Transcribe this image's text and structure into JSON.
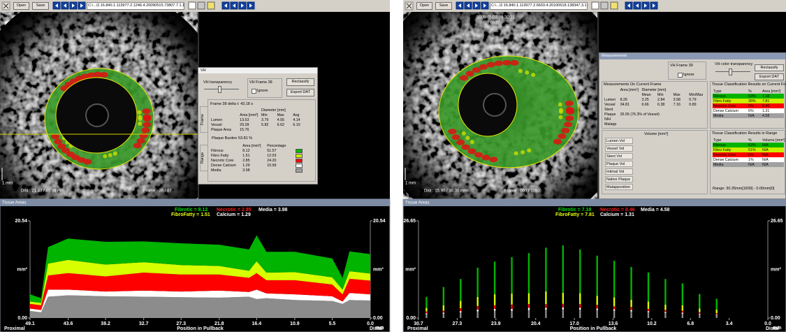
{
  "left": {
    "toolbar": {
      "open": "Open",
      "save": "Save",
      "path": "C:\\...\\2.16.840.1.113977.2.1246.4.20090515.73807.7.1.1.50.IQ"
    },
    "image": {
      "scale": "1 mm",
      "dist": "Dist : 21.43 / 49.06 mm",
      "frame": "Frame : 36 / 87"
    },
    "dialog": {
      "title": "VH",
      "transparency": "VH transparency",
      "frame_box": "VH Frame 39",
      "ignore": "Ignore",
      "reclassify": "Reclassify",
      "export": "Export DAT",
      "tabs": [
        "Frame",
        "Range"
      ],
      "frame_info": "Frame 38 delta t: 43.18 s",
      "diameter": "Diameter [mm]",
      "frame_header": [
        "Area [mm²]",
        "Min",
        "Max",
        "Avg"
      ],
      "frame_rows": [
        [
          "Lumen",
          "13.53",
          "3.79",
          "4.55",
          "4.14"
        ],
        [
          "Vessel",
          "29.28",
          "5.82",
          "6.62",
          "6.10"
        ],
        [
          "Plaque Area",
          "15.76"
        ]
      ],
      "plaque_burden": [
        "Plaque Burden",
        "53.81 %"
      ],
      "tissue_header": [
        "Area [mm²]",
        "Percentage"
      ],
      "tissue_rows": [
        [
          "Fibrous",
          "8.12",
          "51.57"
        ],
        [
          "Fibro Fatty",
          "1.51",
          "12.03"
        ],
        [
          "Necrotic Core",
          "2.85",
          "24.20"
        ],
        [
          "Dense Calcium",
          "1.29",
          "10.99"
        ],
        [
          "Media",
          "3.98"
        ]
      ],
      "tissue_colors": [
        "#00b400",
        "#c8f000",
        "#ff0000",
        "#ffffff",
        "#a0a0a0"
      ]
    },
    "chart": {
      "type": "area",
      "title": "Tissue Areas",
      "legend": [
        {
          "label": "Fibrotic = 8.12",
          "color": "#00e000"
        },
        {
          "label": "Necrotic = 2.85",
          "color": "#ff2020"
        },
        {
          "label": "Media = 3.98",
          "color": "#ffffff"
        },
        {
          "label": "FibroFatty = 1.51",
          "color": "#e8ff00"
        },
        {
          "label": "Calcium = 1.29",
          "color": "#ffffff"
        }
      ],
      "ylabel": "mm²",
      "xlabel": "Position in Pullback",
      "start_label": "Proximal",
      "end_label": "Distal",
      "xunit": "mm",
      "xlim": [
        49.1,
        0
      ],
      "xticks": [
        49.1,
        43.6,
        38.2,
        32.7,
        27.3,
        21.8,
        16.4,
        10.9,
        5.5,
        {
          "value": 0,
          "label": "0.0"
        }
      ],
      "ylim": [
        0,
        20.54
      ],
      "yticks": [
        {
          "value": 0,
          "label": "0.00"
        },
        20.54
      ],
      "x": [
        49.1,
        47.5,
        46.5,
        43.6,
        38.2,
        32.7,
        27.3,
        21.8,
        17.5,
        16.4,
        15.0,
        10.9,
        5.5,
        4.0,
        3.0,
        0
      ],
      "series": [
        {
          "color": "#8c8c8c",
          "values": [
            1.5,
            1.2,
            4.5,
            4.8,
            4.6,
            4.5,
            4.4,
            4.3,
            4.5,
            4.0,
            4.2,
            3.8,
            3.6,
            3.0,
            3.8,
            3.7
          ]
        },
        {
          "color": "#ffffff",
          "values": [
            0.5,
            0.5,
            1.5,
            1.2,
            1.0,
            1.3,
            1.2,
            1.5,
            1.0,
            2.0,
            1.0,
            1.2,
            1.0,
            0.5,
            1.5,
            1.3
          ]
        },
        {
          "color": "#ff0000",
          "values": [
            1.0,
            1.0,
            3.0,
            3.5,
            3.2,
            3.8,
            3.6,
            3.4,
            3.0,
            3.5,
            2.8,
            3.0,
            2.5,
            1.5,
            3.0,
            2.9
          ]
        },
        {
          "color": "#d8ff00",
          "values": [
            0.5,
            0.5,
            2.5,
            2.8,
            2.5,
            2.2,
            2.0,
            1.8,
            1.5,
            2.5,
            1.6,
            1.7,
            1.5,
            1.0,
            1.6,
            1.5
          ]
        },
        {
          "color": "#00b400",
          "values": [
            1.5,
            1.0,
            3.5,
            4.5,
            4.8,
            4.4,
            4.6,
            4.5,
            4.5,
            5.5,
            4.4,
            4.3,
            4.0,
            2.5,
            4.2,
            4.1
          ]
        }
      ]
    }
  },
  "right": {
    "toolbar": {
      "open": "Open",
      "save": "Save",
      "path": "C:\\...\\2.16.840.1.113977.2.6603.4.20100518.138347.3.1.1.50.IQ"
    },
    "image": {
      "scale": "1 mm",
      "dist": "Dist : 15.90 / 30.00 mm",
      "frame": "Frame : 000 / 1050",
      "timestamp": "2009/05/03 08:30:31",
      "frame_id": "0937"
    },
    "dialog": {
      "title": "Measurements",
      "frame_box": "VH Frame 39",
      "ignore": "Ignore",
      "transparency": "VH color transparency",
      "reclassify": "Reclassify",
      "export": "Export DAT",
      "frame_title": "Measurements On Current Frame",
      "frame_header": [
        "Area [mm²]",
        "Diameter [mm]"
      ],
      "frame_subheader": [
        "Mean",
        "Min",
        "Max",
        "Min/Max"
      ],
      "frame_rows": [
        [
          "Lumen",
          "8.26",
          "3.25",
          "2.84",
          "3.58",
          "0.79"
        ],
        [
          "Vessel",
          "34.81",
          "6.66",
          "6.38",
          "7.16",
          "0.89"
        ],
        [
          "Stent"
        ],
        [
          "Plaque",
          "26.55 (76.3% of Vessel)"
        ],
        [
          "NIH"
        ],
        [
          "Malapp"
        ]
      ],
      "tissue_title": "Tissue Classification Results on Current Frame",
      "tissue_header": [
        "Type",
        "%",
        "Area [mm²]"
      ],
      "tissue_rows": [
        [
          "Fibrous",
          "53%",
          "7.18"
        ],
        [
          "Fibro Fatty",
          "35%",
          "7.81"
        ],
        [
          "Necrotic Core",
          "6%",
          "0.46"
        ],
        [
          "Dense Calcium",
          "6%",
          "1.31"
        ],
        [
          "Media",
          "N/A",
          "4.58"
        ]
      ],
      "tissue_colors": [
        "#00b400",
        "#c8f000",
        "#ff0000",
        "#ffffff",
        "#a0a0a0"
      ],
      "volume_header": "Volume [mm³]",
      "volume_rows": [
        "Lumen Vol",
        "Vessel Vol",
        "Stent Vol",
        "Plaque Vol",
        "Intimal Vol",
        "Native Plaque",
        "Malapposition"
      ],
      "range_title": "Tissue Classification Results in Range",
      "range_header": [
        "Type",
        "%",
        "Volume [mm³]"
      ],
      "range_rows": [
        [
          "Fibrous",
          "62%",
          "N/A"
        ],
        [
          "Fibro Fatty",
          "51%",
          "N/A"
        ],
        [
          "Necrotic Core",
          "6%",
          "N/A"
        ],
        [
          "Dense Calcium",
          "1%",
          "N/A"
        ],
        [
          "Media",
          "N/A",
          "N/A"
        ]
      ],
      "range_text": "Range: 30.35mm[1839] - 0.00mm[0]"
    },
    "chart": {
      "type": "bar",
      "title": "Tissue Areas",
      "legend": [
        {
          "label": "Fibrotic = 7.18",
          "color": "#00e000"
        },
        {
          "label": "Necrotic = 0.46",
          "color": "#ff2020"
        },
        {
          "label": "Media = 4.58",
          "color": "#ffffff"
        },
        {
          "label": "FibroFatty = 7.81",
          "color": "#e8ff00"
        },
        {
          "label": "Calcium = 1.31",
          "color": "#ffffff"
        }
      ],
      "ylabel": "mm²",
      "xlabel": "Position in Pullback",
      "start_label": "Proximal",
      "end_label": "Distal",
      "xunit": "mm",
      "xlim": [
        30.7,
        0
      ],
      "xticks": [
        30.7,
        27.3,
        23.9,
        20.4,
        {
          "value": 17,
          "label": "17.0"
        },
        13.6,
        10.2,
        6.8,
        3.4,
        {
          "value": 0,
          "label": "0.0"
        }
      ],
      "ylim": [
        0,
        26.65
      ],
      "yticks": [
        {
          "value": 0,
          "label": "0.00"
        },
        26.65
      ],
      "x": [
        30.0,
        28.5,
        27.0,
        25.5,
        24.0,
        22.5,
        21.0,
        19.5,
        18.0,
        16.5,
        15.0,
        13.5,
        12.0,
        10.5,
        9.0,
        7.5,
        6.0,
        4.5
      ],
      "series": [
        {
          "color": "#8c8c8c",
          "values": [
            1,
            1.2,
            1.5,
            1.8,
            2,
            2,
            2.2,
            2.3,
            2.4,
            2.3,
            2.2,
            2,
            1.8,
            1.6,
            1.4,
            1.2,
            1,
            0.8
          ]
        },
        {
          "color": "#ffffff",
          "values": [
            0.3,
            0.3,
            0.4,
            0.5,
            0.5,
            0.5,
            0.6,
            0.5,
            0.5,
            0.5,
            0.4,
            0.4,
            0.4,
            0.3,
            0.3,
            0.3,
            0.2,
            0.2
          ]
        },
        {
          "color": "#ff0000",
          "values": [
            0.5,
            0.5,
            0.8,
            1,
            1,
            1.2,
            1,
            1,
            1,
            1,
            1,
            0.8,
            0.8,
            0.6,
            0.5,
            0.5,
            0.4,
            0.3
          ]
        },
        {
          "color": "#d8ff00",
          "values": [
            1,
            1.5,
            2,
            2.5,
            3,
            3,
            3,
            3.5,
            3,
            3,
            2.5,
            2.5,
            2,
            2,
            1.5,
            1.5,
            1,
            1
          ]
        },
        {
          "color": "#00b400",
          "values": [
            3,
            5,
            6,
            8,
            9,
            10,
            11,
            12,
            13,
            12,
            11,
            10,
            9,
            8,
            7,
            6,
            4,
            3
          ]
        }
      ]
    }
  }
}
